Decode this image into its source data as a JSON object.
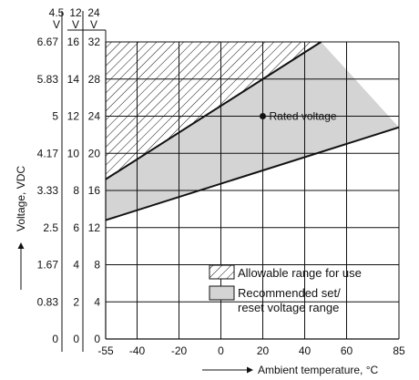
{
  "chart_data": {
    "type": "area",
    "title": "",
    "xlabel": "Ambient temperature, °C",
    "ylabel": "Voltage, VDC",
    "xlim": [
      -55,
      85
    ],
    "ylim": [
      0,
      8
    ],
    "x_ticks": [
      "-55",
      "-40",
      "-20",
      "0",
      "20",
      "40",
      "60",
      "85"
    ],
    "x_tick_values": [
      -55,
      -40,
      -20,
      0,
      20,
      40,
      60,
      85
    ],
    "y_scales": [
      {
        "header": [
          "4.5",
          "V"
        ],
        "ticks": [
          "0",
          "0.83",
          "1.67",
          "2.5",
          "3.33",
          "4.17",
          "5",
          "5.83",
          "6.67"
        ]
      },
      {
        "header": [
          "12",
          "V"
        ],
        "ticks": [
          "0",
          "2",
          "4",
          "6",
          "8",
          "10",
          "12",
          "14",
          "16"
        ]
      },
      {
        "header": [
          "24",
          "V"
        ],
        "ticks": [
          "0",
          "4",
          "8",
          "12",
          "16",
          "20",
          "24",
          "28",
          "32"
        ]
      }
    ],
    "series": [
      {
        "name": "Allowable range for use",
        "pattern": "hatched",
        "lower": {
          "x": [
            -55,
            47.8
          ],
          "y": [
            4.3,
            8
          ]
        },
        "upper": {
          "x": [
            -55,
            85
          ],
          "y": [
            8,
            8
          ]
        }
      },
      {
        "name": "Recommended set/ reset voltage range",
        "fill": "#d4d4d4",
        "lower": {
          "x": [
            -55,
            85
          ],
          "y": [
            3.2,
            5.7
          ]
        },
        "upper": {
          "x": [
            -55,
            47.8
          ],
          "y": [
            4.3,
            8
          ]
        }
      }
    ],
    "annotations": [
      {
        "text": "Rated voltage",
        "x": 20,
        "y": 6
      }
    ],
    "legend_position": "bottom-right",
    "grid": true
  }
}
